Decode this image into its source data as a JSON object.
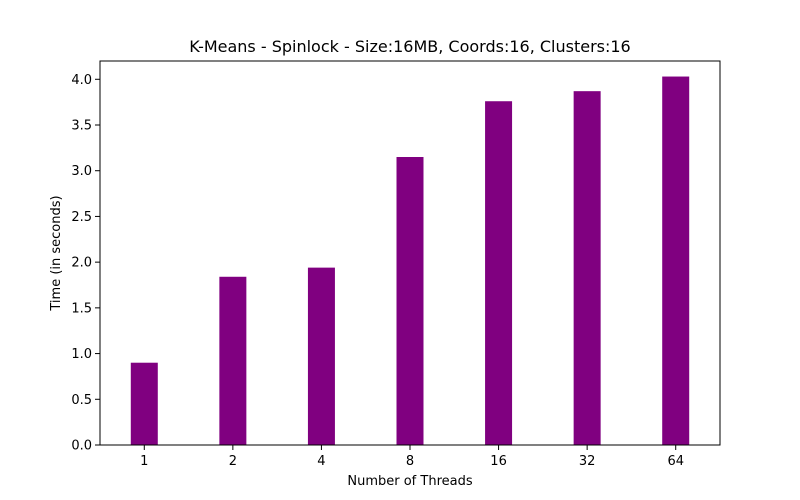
{
  "chart_data": {
    "type": "bar",
    "title": "K-Means - Spinlock - Size:16MB, Coords:16, Clusters:16",
    "xlabel": "Number of Threads",
    "ylabel": "Time (in seconds)",
    "categories": [
      "1",
      "2",
      "4",
      "8",
      "16",
      "32",
      "64"
    ],
    "values": [
      0.9,
      1.84,
      1.94,
      3.15,
      3.76,
      3.87,
      4.03
    ],
    "ylim": [
      0,
      4.2
    ],
    "yticks": [
      "0.0",
      "0.5",
      "1.0",
      "1.5",
      "2.0",
      "2.5",
      "3.0",
      "3.5",
      "4.0"
    ],
    "bar_color": "#800080",
    "grid": false,
    "legend": "none"
  }
}
